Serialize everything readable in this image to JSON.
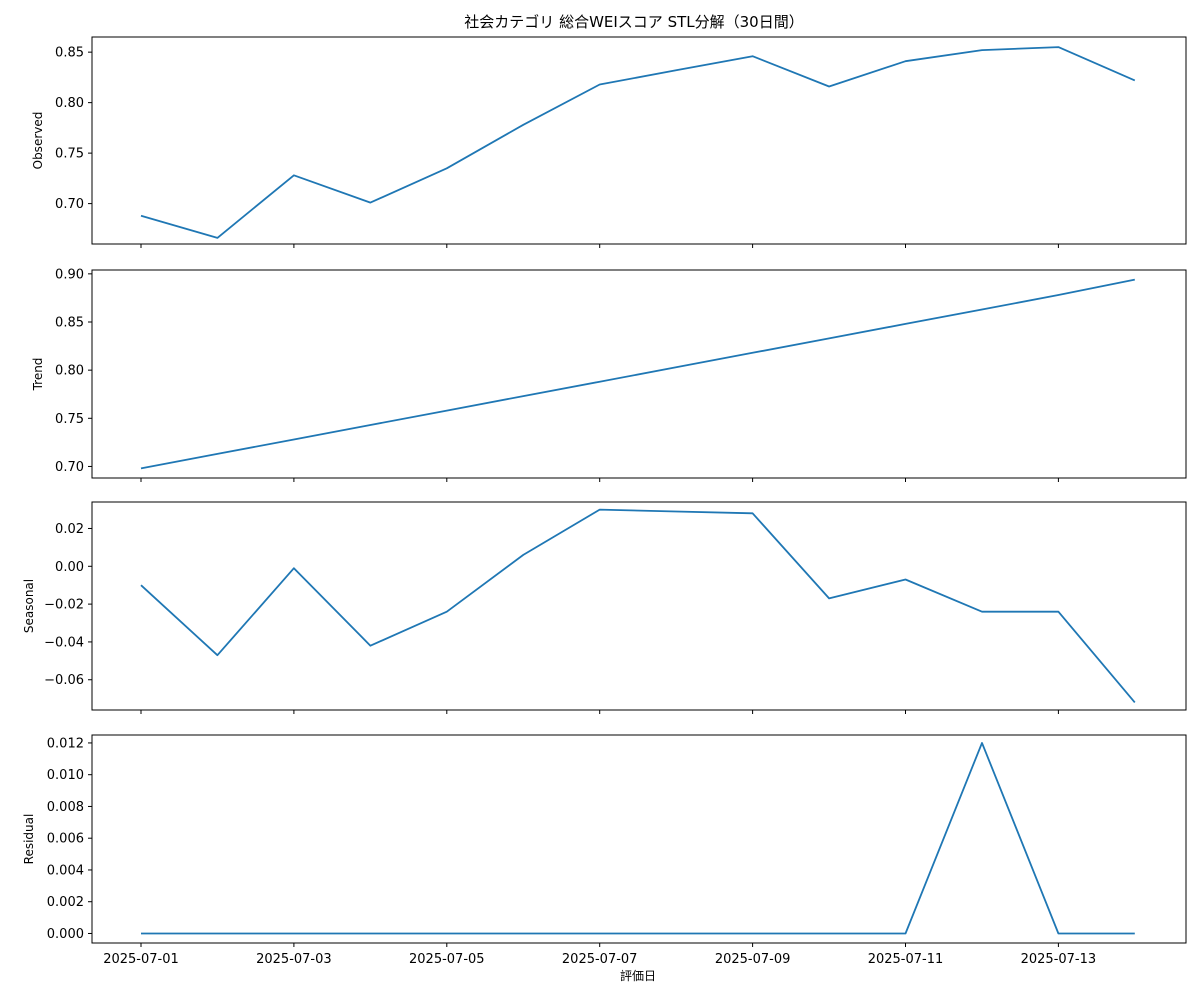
{
  "chart_data": {
    "type": "line",
    "title": "社会カテゴリ 総合WEIスコア STL分解（30日間）",
    "xlabel": "評価日",
    "x": [
      "2025-07-01",
      "2025-07-02",
      "2025-07-03",
      "2025-07-04",
      "2025-07-05",
      "2025-07-06",
      "2025-07-07",
      "2025-07-08",
      "2025-07-09",
      "2025-07-10",
      "2025-07-11",
      "2025-07-12",
      "2025-07-13",
      "2025-07-14"
    ],
    "xticks": [
      "2025-07-01",
      "2025-07-03",
      "2025-07-05",
      "2025-07-07",
      "2025-07-09",
      "2025-07-11",
      "2025-07-13"
    ],
    "panels": [
      {
        "ylabel": "Observed",
        "ylim": [
          0.66,
          0.865
        ],
        "yticks": [
          "0.70",
          "0.75",
          "0.80",
          "0.85"
        ],
        "values": [
          0.688,
          0.666,
          0.728,
          0.701,
          0.735,
          0.778,
          0.818,
          0.832,
          0.846,
          0.816,
          0.841,
          0.852,
          0.855,
          0.822
        ]
      },
      {
        "ylabel": "Trend",
        "ylim": [
          0.688,
          0.904
        ],
        "yticks": [
          "0.70",
          "0.75",
          "0.80",
          "0.85",
          "0.90"
        ],
        "values": [
          0.698,
          0.713,
          0.728,
          0.743,
          0.758,
          0.773,
          0.788,
          0.803,
          0.818,
          0.833,
          0.848,
          0.863,
          0.878,
          0.894
        ]
      },
      {
        "ylabel": "Seasonal",
        "ylim": [
          -0.076,
          0.034
        ],
        "yticks": [
          "0.02",
          "0.00",
          "−0.02",
          "−0.04",
          "−0.06"
        ],
        "values": [
          -0.01,
          -0.047,
          -0.001,
          -0.042,
          -0.024,
          0.006,
          0.03,
          0.029,
          0.028,
          -0.017,
          -0.007,
          -0.024,
          -0.024,
          -0.072
        ]
      },
      {
        "ylabel": "Residual",
        "ylim": [
          -0.0006,
          0.0125
        ],
        "yticks": [
          "0.012",
          "0.010",
          "0.008",
          "0.006",
          "0.004",
          "0.002",
          "0.000"
        ],
        "values": [
          0,
          0,
          0,
          0,
          0,
          0,
          0,
          0,
          0,
          0,
          0,
          0.012,
          0,
          0
        ]
      }
    ],
    "line_color": "#1f77b4",
    "grid": false
  }
}
